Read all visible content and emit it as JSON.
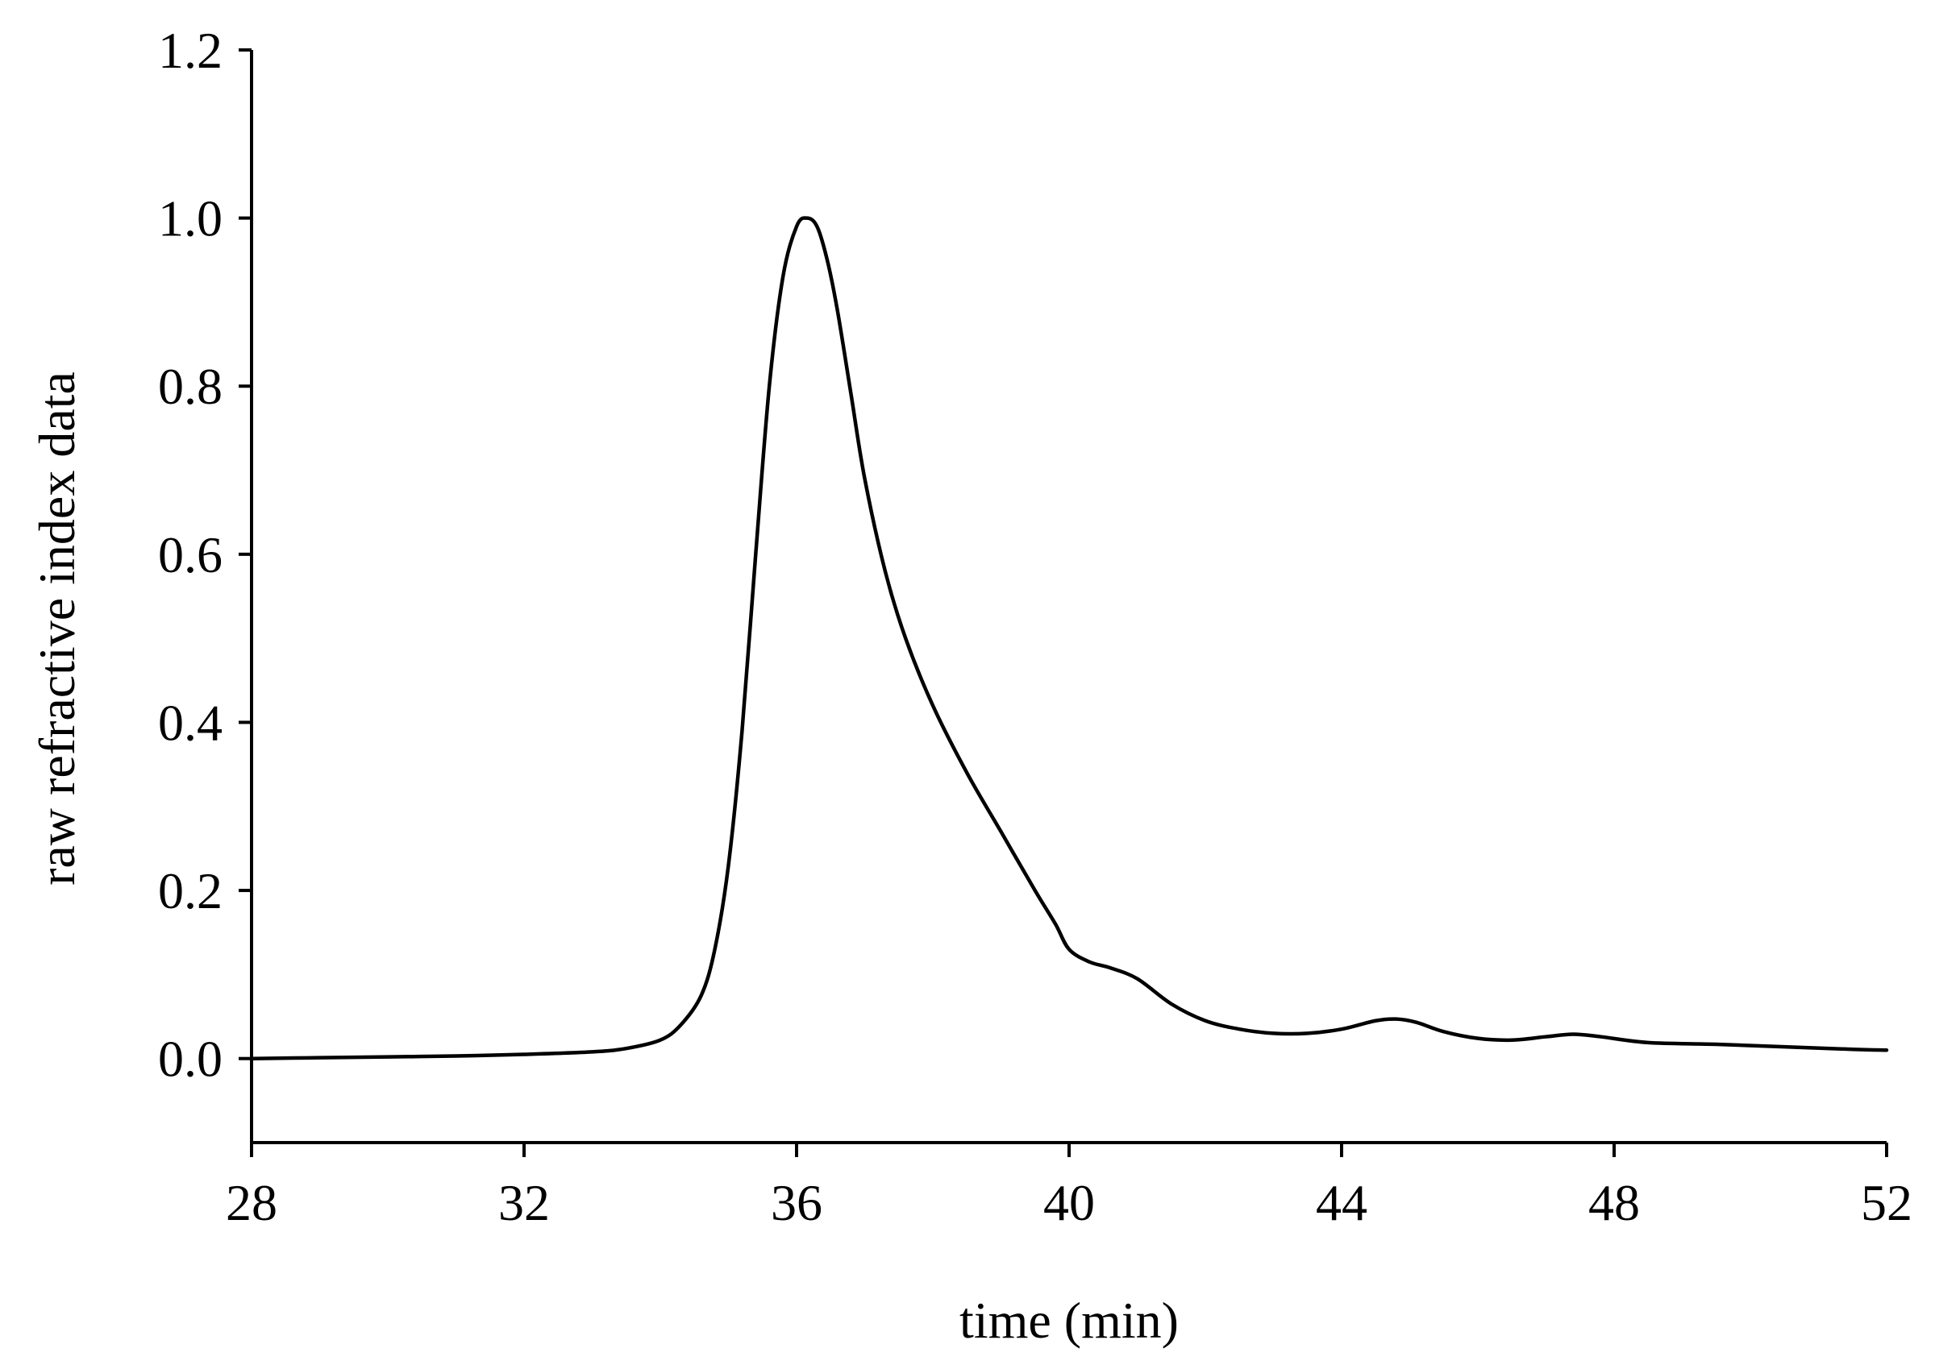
{
  "chart_data": {
    "type": "line",
    "title": "",
    "xlabel": "time (min)",
    "ylabel": "raw refractive index data",
    "xlim": [
      28,
      52
    ],
    "ylim": [
      -0.1,
      1.2
    ],
    "xticks": [
      28,
      32,
      36,
      40,
      44,
      48,
      52
    ],
    "xtick_labels": [
      "28",
      "32",
      "36",
      "40",
      "44",
      "48",
      "52"
    ],
    "yticks": [
      0.0,
      0.2,
      0.4,
      0.6,
      0.8,
      1.0,
      1.2
    ],
    "ytick_labels": [
      "0.0",
      "0.2",
      "0.4",
      "0.6",
      "0.8",
      "1.0",
      "1.2"
    ],
    "grid": false,
    "legend": "none",
    "line_color": "#000000",
    "series": [
      {
        "x": [
          28,
          29,
          30,
          31,
          32,
          33,
          33.5,
          34,
          34.3,
          34.6,
          34.8,
          35.0,
          35.2,
          35.4,
          35.6,
          35.8,
          36.0,
          36.15,
          36.3,
          36.45,
          36.6,
          36.8,
          37.0,
          37.3,
          37.6,
          38.0,
          38.5,
          39.0,
          39.5,
          39.8,
          40.0,
          40.3,
          40.6,
          41.0,
          41.5,
          42.0,
          42.5,
          43.0,
          43.5,
          44.0,
          44.5,
          44.8,
          45.1,
          45.5,
          46.0,
          46.5,
          47.0,
          47.4,
          47.8,
          48.5,
          49.5,
          50.5,
          51.5,
          52.0
        ],
        "y": [
          0.0,
          0.001,
          0.002,
          0.003,
          0.005,
          0.008,
          0.012,
          0.022,
          0.04,
          0.075,
          0.13,
          0.23,
          0.39,
          0.6,
          0.8,
          0.93,
          0.99,
          1.0,
          0.99,
          0.95,
          0.89,
          0.79,
          0.69,
          0.58,
          0.5,
          0.42,
          0.34,
          0.27,
          0.2,
          0.16,
          0.13,
          0.115,
          0.108,
          0.095,
          0.065,
          0.045,
          0.035,
          0.03,
          0.03,
          0.035,
          0.045,
          0.047,
          0.043,
          0.032,
          0.024,
          0.022,
          0.026,
          0.029,
          0.026,
          0.019,
          0.017,
          0.014,
          0.011,
          0.01
        ]
      }
    ]
  }
}
